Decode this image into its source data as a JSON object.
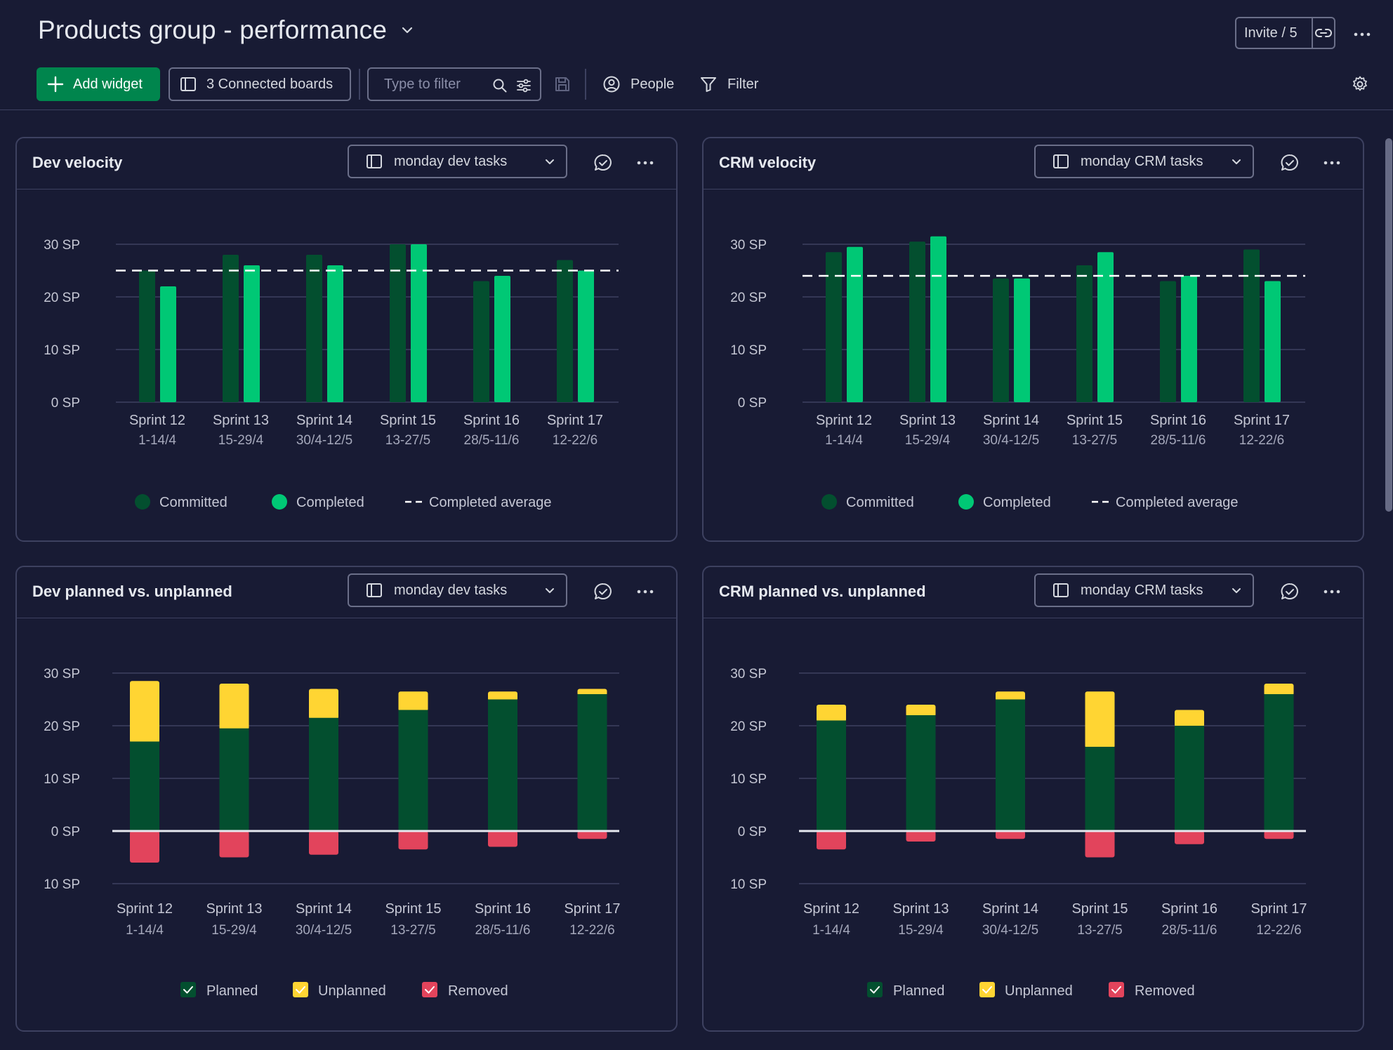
{
  "header": {
    "title": "Products group - performance",
    "invite_label": "Invite / 5"
  },
  "toolbar": {
    "add_widget": "Add widget",
    "connected_boards": "3 Connected boards",
    "filter_placeholder": "Type to filter",
    "people": "People",
    "filter": "Filter"
  },
  "colors": {
    "background": "#181b34",
    "committed": "#034f2f",
    "completed": "#00c875",
    "planned": "#034f2f",
    "unplanned": "#ffd533",
    "removed": "#e2445c",
    "accent_button": "#00854d"
  },
  "widgets": {
    "dev_velocity": {
      "title": "Dev velocity",
      "board": "monday dev tasks"
    },
    "crm_velocity": {
      "title": "CRM velocity",
      "board": "monday CRM tasks"
    },
    "dev_planned": {
      "title": "Dev planned vs. unplanned",
      "board": "monday dev tasks"
    },
    "crm_planned": {
      "title": "CRM planned vs. unplanned",
      "board": "monday CRM tasks"
    }
  },
  "chart_data": [
    {
      "id": "dev_velocity",
      "type": "bar",
      "title": "Dev velocity",
      "categories": [
        "Sprint 12",
        "Sprint 13",
        "Sprint 14",
        "Sprint 15",
        "Sprint 16",
        "Sprint 17"
      ],
      "category_dates": [
        "1-14/4",
        "15-29/4",
        "30/4-12/5",
        "13-27/5",
        "28/5-11/6",
        "12-22/6"
      ],
      "series": [
        {
          "name": "Committed",
          "values": [
            25,
            28,
            28,
            30,
            23,
            27
          ]
        },
        {
          "name": "Completed",
          "values": [
            22,
            26,
            26,
            30,
            24,
            25
          ]
        }
      ],
      "reference_line": {
        "name": "Completed average",
        "value": 25
      },
      "yticks": [
        0,
        10,
        20,
        30
      ],
      "ytick_labels": [
        "0 SP",
        "10 SP",
        "20 SP",
        "30 SP"
      ],
      "ylim": [
        0,
        30
      ],
      "legend": [
        "Committed",
        "Completed",
        "Completed average"
      ],
      "legend_position": "bottom"
    },
    {
      "id": "crm_velocity",
      "type": "bar",
      "title": "CRM velocity",
      "categories": [
        "Sprint 12",
        "Sprint 13",
        "Sprint 14",
        "Sprint 15",
        "Sprint 16",
        "Sprint 17"
      ],
      "category_dates": [
        "1-14/4",
        "15-29/4",
        "30/4-12/5",
        "13-27/5",
        "28/5-11/6",
        "12-22/6"
      ],
      "series": [
        {
          "name": "Committed",
          "values": [
            28.5,
            30.5,
            23.5,
            26,
            23,
            29
          ]
        },
        {
          "name": "Completed",
          "values": [
            29.5,
            31.5,
            23.5,
            28.5,
            24,
            23
          ]
        }
      ],
      "reference_line": {
        "name": "Completed average",
        "value": 24
      },
      "yticks": [
        0,
        10,
        20,
        30
      ],
      "ytick_labels": [
        "0 SP",
        "10 SP",
        "20 SP",
        "30 SP"
      ],
      "ylim": [
        0,
        30
      ],
      "legend": [
        "Committed",
        "Completed",
        "Completed average"
      ],
      "legend_position": "bottom"
    },
    {
      "id": "dev_planned",
      "type": "bar",
      "stacked": true,
      "title": "Dev planned vs. unplanned",
      "categories": [
        "Sprint 12",
        "Sprint 13",
        "Sprint 14",
        "Sprint 15",
        "Sprint 16",
        "Sprint 17"
      ],
      "category_dates": [
        "1-14/4",
        "15-29/4",
        "30/4-12/5",
        "13-27/5",
        "28/5-11/6",
        "12-22/6"
      ],
      "series": [
        {
          "name": "Planned",
          "values": [
            17,
            19.5,
            21.5,
            23,
            25,
            26
          ]
        },
        {
          "name": "Unplanned",
          "values": [
            11.5,
            8.5,
            5.5,
            3.5,
            1.5,
            1
          ]
        },
        {
          "name": "Removed",
          "values": [
            -6,
            -5,
            -4.5,
            -3.5,
            -3,
            -1.5
          ]
        }
      ],
      "yticks": [
        -10,
        0,
        10,
        20,
        30
      ],
      "ytick_labels": [
        "10 SP",
        "0 SP",
        "10 SP",
        "20 SP",
        "30 SP"
      ],
      "ylim": [
        -10,
        30
      ],
      "legend": [
        "Planned",
        "Unplanned",
        "Removed"
      ],
      "legend_position": "bottom"
    },
    {
      "id": "crm_planned",
      "type": "bar",
      "stacked": true,
      "title": "CRM planned vs. unplanned",
      "categories": [
        "Sprint 12",
        "Sprint 13",
        "Sprint 14",
        "Sprint 15",
        "Sprint 16",
        "Sprint 17"
      ],
      "category_dates": [
        "1-14/4",
        "15-29/4",
        "30/4-12/5",
        "13-27/5",
        "28/5-11/6",
        "12-22/6"
      ],
      "series": [
        {
          "name": "Planned",
          "values": [
            21,
            22,
            25,
            16,
            20,
            26
          ]
        },
        {
          "name": "Unplanned",
          "values": [
            3,
            2,
            1.5,
            10.5,
            3,
            2
          ]
        },
        {
          "name": "Removed",
          "values": [
            -3.5,
            -2,
            -1.5,
            -5,
            -2.5,
            -1.5
          ]
        }
      ],
      "yticks": [
        -10,
        0,
        10,
        20,
        30
      ],
      "ytick_labels": [
        "10 SP",
        "0 SP",
        "10 SP",
        "20 SP",
        "30 SP"
      ],
      "ylim": [
        -10,
        30
      ],
      "legend": [
        "Planned",
        "Unplanned",
        "Removed"
      ],
      "legend_position": "bottom"
    }
  ]
}
